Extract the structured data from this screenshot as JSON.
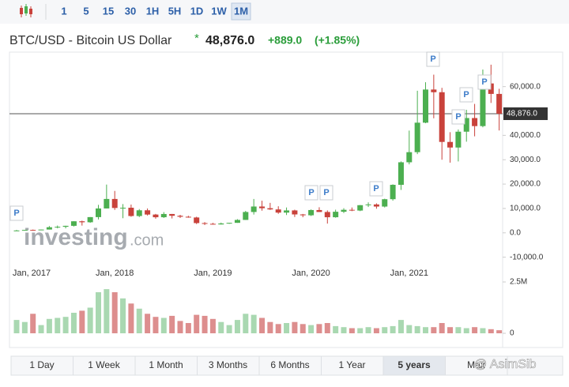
{
  "toolbar": {
    "intervals": [
      "1",
      "5",
      "15",
      "30",
      "1H",
      "5H",
      "1D",
      "1W",
      "1M"
    ],
    "active": 8
  },
  "header": {
    "title": "BTC/USD - Bitcoin US Dollar",
    "star": "*",
    "change": "+889.0",
    "change_pct": "(+1.85%)"
  },
  "chart_data": {
    "type": "candlestick",
    "categories": [
      "Jan, 2017",
      null,
      null,
      null,
      null,
      null,
      null,
      null,
      null,
      null,
      null,
      null,
      "Jan, 2018",
      null,
      null,
      null,
      null,
      null,
      null,
      null,
      null,
      null,
      null,
      null,
      "Jan, 2019",
      null,
      null,
      null,
      null,
      null,
      null,
      null,
      null,
      null,
      null,
      null,
      "Jan, 2020",
      null,
      null,
      null,
      null,
      null,
      null,
      null,
      null,
      null,
      null,
      null,
      "Jan, 2021",
      null,
      null,
      null,
      null,
      null,
      null,
      null,
      null,
      null,
      null,
      null
    ],
    "open": [
      964,
      970,
      1190,
      1080,
      1350,
      2300,
      2480,
      2880,
      4740,
      4340,
      6450,
      10000,
      13900,
      10200,
      10300,
      6900,
      9250,
      7500,
      6400,
      7730,
      7000,
      6600,
      6300,
      4000,
      3700,
      3450,
      3850,
      4100,
      5300,
      8550,
      10800,
      10100,
      9600,
      8300,
      9200,
      7550,
      7200,
      9350,
      8550,
      6400,
      8650,
      9450,
      9140,
      11350,
      11650,
      10780,
      13800,
      19700,
      28950,
      33100,
      45200,
      58800,
      57700,
      37300,
      35000,
      41500,
      47100,
      43800,
      61300,
      57000
    ],
    "high": [
      1190,
      1200,
      1350,
      1350,
      2790,
      3000,
      2920,
      4760,
      5000,
      6470,
      11500,
      19800,
      17200,
      11800,
      11600,
      9750,
      10000,
      7780,
      8500,
      7750,
      7400,
      7000,
      6600,
      4400,
      4100,
      4200,
      4100,
      5600,
      9000,
      13900,
      13200,
      12300,
      10900,
      10400,
      9500,
      7750,
      9600,
      10500,
      9200,
      9500,
      10100,
      10400,
      11400,
      12500,
      12100,
      14000,
      19900,
      29300,
      41950,
      58300,
      61800,
      64900,
      59500,
      41300,
      42400,
      50500,
      52900,
      67000,
      69000,
      59100
    ],
    "low": [
      750,
      920,
      890,
      1060,
      1350,
      1850,
      1830,
      2580,
      2970,
      4110,
      5500,
      10000,
      9400,
      6000,
      6600,
      6450,
      7100,
      5800,
      6100,
      5900,
      6100,
      6200,
      3600,
      3200,
      3400,
      3400,
      3700,
      4100,
      5300,
      7500,
      9100,
      9400,
      7800,
      7300,
      6500,
      6400,
      6900,
      8600,
      3800,
      6200,
      8100,
      8900,
      8900,
      10600,
      9900,
      10400,
      13200,
      17600,
      28100,
      32300,
      45000,
      47000,
      30000,
      28800,
      29300,
      37400,
      39600,
      43300,
      53300,
      42000
    ],
    "close": [
      970,
      1190,
      1080,
      1350,
      2300,
      2480,
      2880,
      4740,
      4340,
      6450,
      10000,
      13900,
      10200,
      10300,
      6900,
      9250,
      7500,
      6400,
      7730,
      7000,
      6600,
      6300,
      4000,
      3700,
      3450,
      3850,
      4100,
      5300,
      8550,
      10800,
      10100,
      9600,
      8300,
      9200,
      7550,
      7200,
      9350,
      8550,
      6400,
      8650,
      9450,
      9140,
      11350,
      11650,
      10780,
      13800,
      19700,
      28950,
      33100,
      45200,
      58800,
      57700,
      37300,
      35000,
      41500,
      47100,
      43800,
      61300,
      57000,
      48876
    ],
    "volume": [
      0.65,
      0.55,
      0.95,
      0.4,
      0.7,
      0.75,
      0.8,
      1.0,
      1.1,
      1.25,
      2.0,
      2.15,
      2.0,
      1.7,
      1.45,
      1.2,
      0.95,
      0.8,
      0.75,
      0.85,
      0.6,
      0.5,
      0.9,
      0.85,
      0.7,
      0.55,
      0.4,
      0.65,
      0.95,
      0.9,
      0.75,
      0.55,
      0.45,
      0.5,
      0.55,
      0.45,
      0.4,
      0.45,
      0.5,
      0.35,
      0.3,
      0.25,
      0.25,
      0.3,
      0.25,
      0.3,
      0.35,
      0.65,
      0.4,
      0.35,
      0.3,
      0.3,
      0.5,
      0.3,
      0.3,
      0.25,
      0.3,
      0.25,
      0.2,
      0.15
    ],
    "up_color": "#4caf50",
    "down_color": "#c9423b",
    "up_volume_color": "#a9d8b1",
    "down_volume_color": "#dd8e8e",
    "ylim": [
      -14000,
      73500
    ],
    "yticks": [
      {
        "value": 60000,
        "label": "60,000.0"
      },
      {
        "value": 40000,
        "label": "40,000.0"
      },
      {
        "value": 30000,
        "label": "30,000.0"
      },
      {
        "value": 20000,
        "label": "20,000.0"
      },
      {
        "value": 10000,
        "label": "10,000.0"
      },
      {
        "value": 0,
        "label": "0.0"
      },
      {
        "value": -10000,
        "label": "-10,000.0"
      }
    ],
    "last_price": {
      "value": 48876,
      "label": "48,876.0"
    },
    "vlim": [
      0,
      2.5
    ],
    "vticks": [
      {
        "value": 2.5,
        "label": "2.5M"
      },
      0
    ],
    "markers": [
      "P",
      "P",
      "P",
      "P",
      "P",
      "P",
      "P",
      "P"
    ],
    "watermark": "investing",
    "watermark_suffix": ".com"
  },
  "ranges": {
    "buttons": [
      "1 Day",
      "1 Week",
      "1 Month",
      "3 Months",
      "6 Months",
      "1 Year",
      "5 years",
      "Max"
    ],
    "active": 6
  },
  "credit": "@ AsimSib"
}
